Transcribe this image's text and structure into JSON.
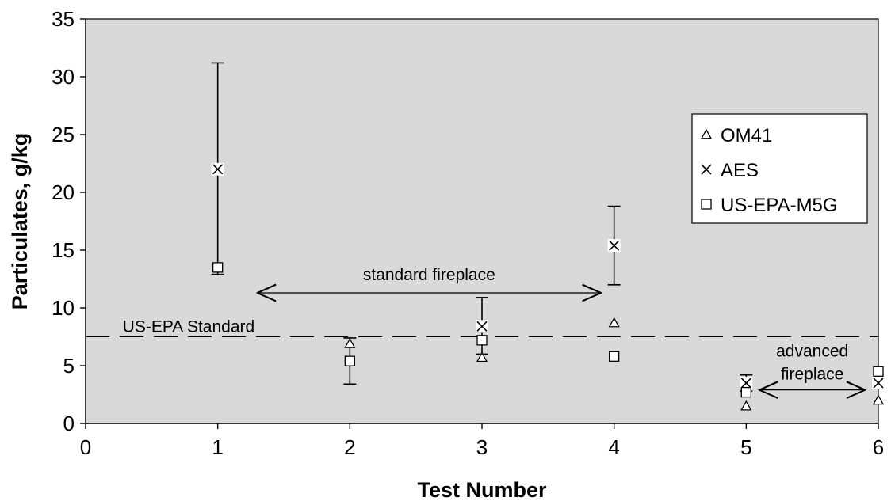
{
  "chart_data": {
    "type": "scatter",
    "title": "",
    "xlabel": "Test Number",
    "ylabel": "Particulates, g/kg",
    "xlim": [
      0,
      6
    ],
    "ylim": [
      0,
      35
    ],
    "xticks": [
      0,
      1,
      2,
      3,
      4,
      5,
      6
    ],
    "yticks": [
      0,
      5,
      10,
      15,
      20,
      25,
      30,
      35
    ],
    "grid": false,
    "plot_background": "#d9d9d9",
    "legend_position": "right",
    "series": [
      {
        "name": "OM41",
        "marker": "triangle",
        "points": [
          {
            "x": 2,
            "y": 6.9
          },
          {
            "x": 3,
            "y": 5.7
          },
          {
            "x": 4,
            "y": 8.7
          },
          {
            "x": 5,
            "y": 1.5
          },
          {
            "x": 6,
            "y": 2.0
          }
        ]
      },
      {
        "name": "AES",
        "marker": "x",
        "points": [
          {
            "x": 1,
            "y": 22.0,
            "err_low": 12.9,
            "err_high": 31.2
          },
          {
            "x": 3,
            "y": 8.4,
            "err_low": 6.0,
            "err_high": 10.9
          },
          {
            "x": 4,
            "y": 15.4,
            "err_low": 12.0,
            "err_high": 18.8
          },
          {
            "x": 5,
            "y": 3.5,
            "err_low": 2.8,
            "err_high": 4.2
          },
          {
            "x": 6,
            "y": 3.5
          }
        ]
      },
      {
        "name": "US-EPA-M5G",
        "marker": "square",
        "points": [
          {
            "x": 1,
            "y": 13.5
          },
          {
            "x": 2,
            "y": 5.4,
            "err_low": 3.4,
            "err_high": 7.4
          },
          {
            "x": 3,
            "y": 7.2
          },
          {
            "x": 4,
            "y": 5.8
          },
          {
            "x": 5,
            "y": 2.7
          },
          {
            "x": 6,
            "y": 4.5
          }
        ]
      }
    ],
    "reference_lines": [
      {
        "label": "US-EPA Standard",
        "y": 7.5,
        "style": "dashed"
      }
    ],
    "annotations": [
      {
        "text": "standard fireplace",
        "from_x": 1.3,
        "to_x": 3.9,
        "y": 11.3
      },
      {
        "text_lines": [
          "advanced",
          "fireplace"
        ],
        "from_x": 5.1,
        "to_x": 5.9,
        "y": 2.9
      }
    ]
  }
}
